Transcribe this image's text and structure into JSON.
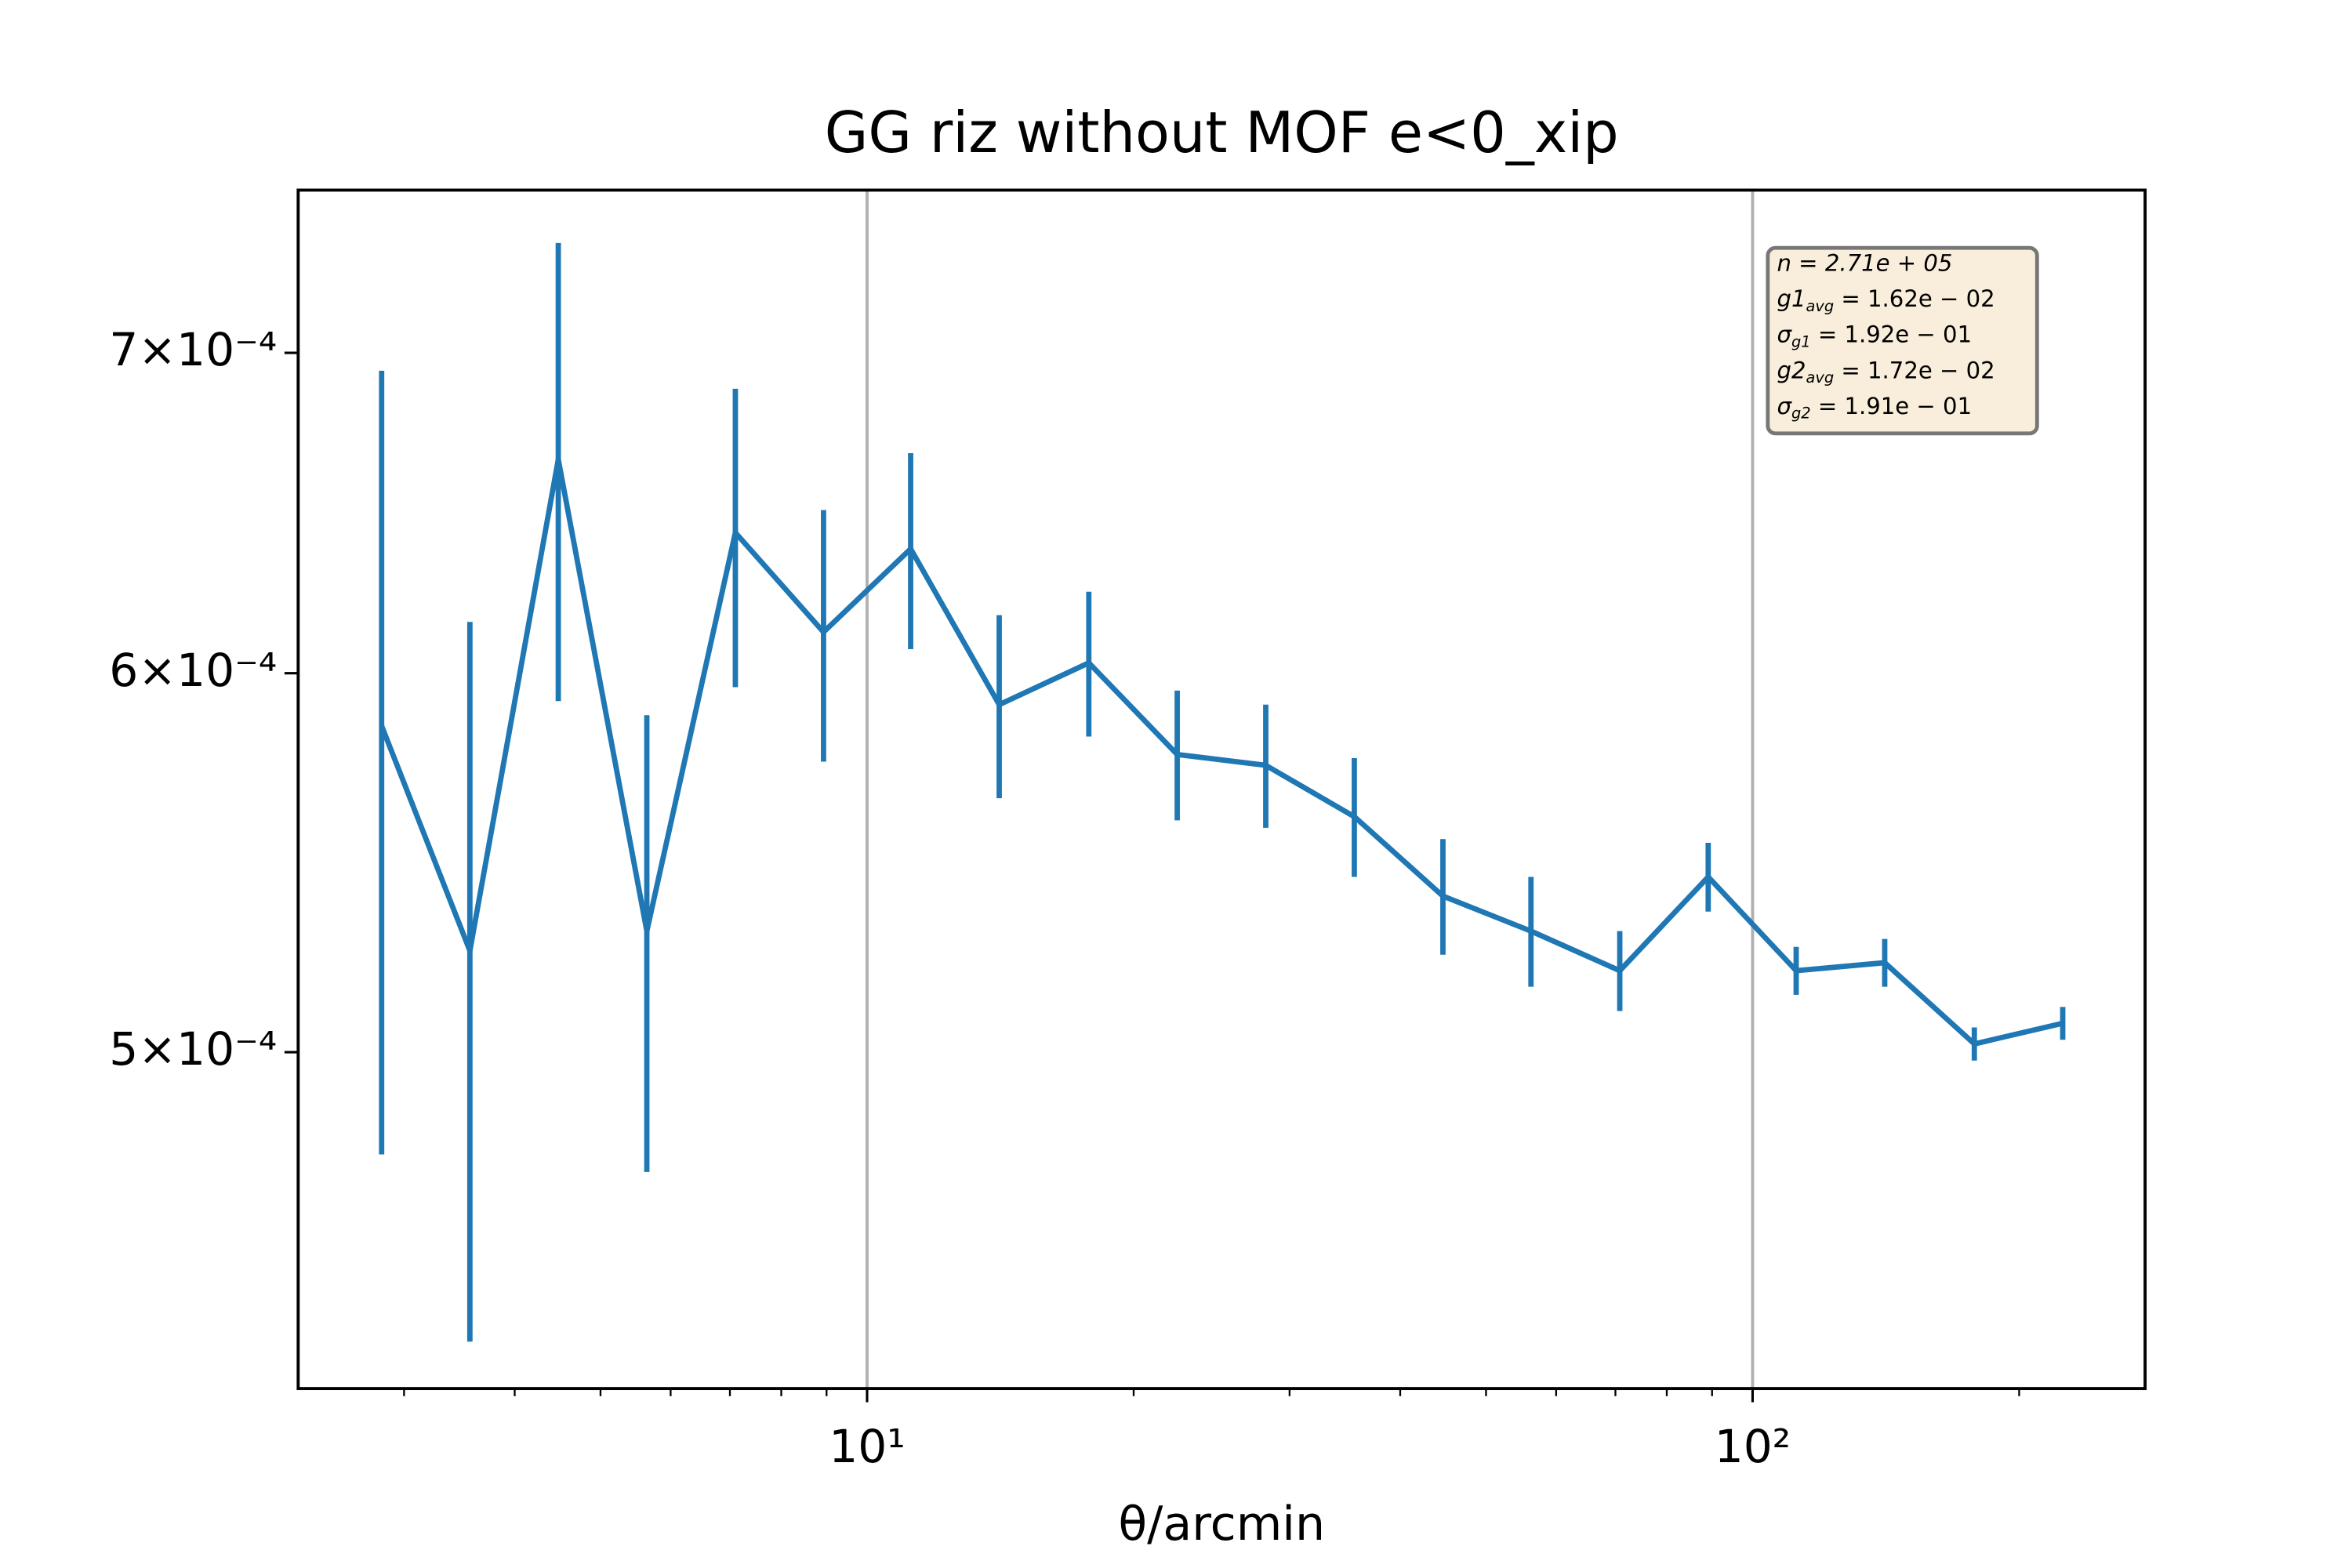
{
  "chart_data": {
    "type": "errorbar",
    "title": "GG riz without MOF e<0_xip",
    "xlabel": "θ/arcmin",
    "x": [
      2.83,
      3.56,
      4.48,
      5.64,
      7.1,
      8.93,
      11.2,
      14.1,
      17.8,
      22.4,
      28.2,
      35.5,
      44.7,
      56.2,
      70.8,
      89.1,
      112,
      141,
      178,
      224
    ],
    "values": [
      0.000585,
      0.000525,
      0.000665,
      0.00053,
      0.000642,
      0.000612,
      0.000637,
      0.000591,
      0.000603,
      0.000577,
      0.000574,
      0.00056,
      0.000539,
      0.00053,
      0.00052,
      0.000544,
      0.00052,
      0.000522,
      0.000502,
      0.000507
    ],
    "errors": [
      0.000109,
      9e-05,
      7.3e-05,
      5.8e-05,
      4.6e-05,
      3.7e-05,
      3e-05,
      2.6e-05,
      2.1e-05,
      1.8e-05,
      1.7e-05,
      1.6e-05,
      1.5e-05,
      1.4e-05,
      1e-05,
      9e-06,
      6e-06,
      6e-06,
      4e-06,
      4e-06
    ],
    "color": "#1f77b4",
    "xscale": "log",
    "yscale": "log",
    "xlim": [
      2.278,
      277.5
    ],
    "ylim": [
      0.0004253,
      0.000757
    ],
    "xticks": [
      {
        "value": 10,
        "label": "10¹"
      },
      {
        "value": 100,
        "label": "10²"
      }
    ],
    "xminorticks": [
      3,
      4,
      5,
      6,
      7,
      8,
      9,
      20,
      30,
      40,
      50,
      60,
      70,
      80,
      90,
      200
    ],
    "yticks": [
      {
        "value": 0.0005,
        "label": "5×10⁻⁴"
      },
      {
        "value": 0.0006,
        "label": "6×10⁻⁴"
      },
      {
        "value": 0.0007,
        "label": "7×10⁻⁴"
      }
    ],
    "grid": "x",
    "stats": [
      [
        "n = 2.71e + 05"
      ],
      [
        "g1",
        "avg",
        " = 1.62e − 02"
      ],
      [
        "σ",
        "g1",
        " = 1.92e − 01"
      ],
      [
        "g2",
        "avg",
        " = 1.72e − 02"
      ],
      [
        "σ",
        "g2",
        " = 1.91e − 01"
      ]
    ]
  }
}
